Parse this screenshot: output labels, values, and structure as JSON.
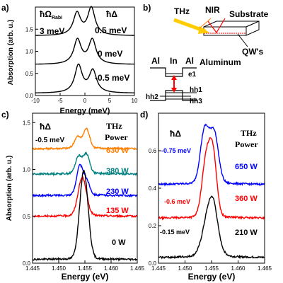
{
  "chart_data": [
    {
      "id": "a",
      "panel_label": "a)",
      "type": "line",
      "xlabel": "Energy (meV)",
      "ylabel": "Absorption (arb. u.)",
      "xlim": [
        -10,
        10
      ],
      "ylim": [
        0,
        2
      ],
      "xticks": [
        "-10",
        "-5",
        "0",
        "5",
        "10"
      ],
      "yticks": [
        "0.0",
        "0.5",
        "1.0",
        "1.5"
      ],
      "annotations": {
        "rabi_symbol": "ħΩ",
        "rabi_sub": "Rabi",
        "rabi_value": "3 meV",
        "delta_symbol": "ħΔ"
      },
      "series": [
        {
          "label": "0.5 meV",
          "offset": 1.35,
          "p1": {
            "x": -1.6,
            "y": 0.5
          },
          "p2": {
            "x": 1.3,
            "y": 0.62
          },
          "width": 0.9
        },
        {
          "label": "0 meV",
          "offset": 0.7,
          "p1": {
            "x": -1.5,
            "y": 0.55
          },
          "p2": {
            "x": 1.5,
            "y": 0.55
          },
          "width": 0.9
        },
        {
          "label": "-0.5 meV",
          "offset": 0.05,
          "p1": {
            "x": -1.3,
            "y": 0.62
          },
          "p2": {
            "x": 1.6,
            "y": 0.5
          },
          "width": 0.9
        }
      ]
    },
    {
      "id": "c",
      "panel_label": "c)",
      "type": "line",
      "xlabel": "Energy (eV)",
      "ylabel": "Absorption (arb. u.)",
      "xlim": [
        1.445,
        1.465
      ],
      "ylim": [
        0,
        1.6
      ],
      "xticks": [
        "1.445",
        "1.450",
        "1.455",
        "1.460",
        "1.465"
      ],
      "yticks": [
        "0.0",
        "0.5",
        "1.0",
        "1.5"
      ],
      "annotations": {
        "delta_symbol": "ħΔ",
        "delta_value": "-0.5 meV",
        "thz": "THz",
        "power": "Power"
      },
      "series": [
        {
          "label": "630 W",
          "color": "#ff8000",
          "offset": 1.22,
          "peaks": [
            {
              "x": 1.4536,
              "h": 0.12,
              "w": 0.0006
            },
            {
              "x": 1.4553,
              "h": 0.2,
              "w": 0.0006
            }
          ]
        },
        {
          "label": "380 W",
          "color": "#008080",
          "offset": 0.95,
          "peaks": [
            {
              "x": 1.4538,
              "h": 0.18,
              "w": 0.0006
            },
            {
              "x": 1.4553,
              "h": 0.2,
              "w": 0.0006
            }
          ]
        },
        {
          "label": "230 W",
          "color": "#0000ff",
          "offset": 0.72,
          "peaks": [
            {
              "x": 1.454,
              "h": 0.3,
              "w": 0.0006
            },
            {
              "x": 1.4553,
              "h": 0.15,
              "w": 0.0006
            }
          ]
        },
        {
          "label": "135 W",
          "color": "#ff0000",
          "offset": 0.5,
          "peaks": [
            {
              "x": 1.4545,
              "h": 0.4,
              "w": 0.0008
            }
          ]
        },
        {
          "label": "0 W",
          "color": "#000000",
          "offset": 0.04,
          "peaks": [
            {
              "x": 1.4548,
              "h": 0.93,
              "w": 0.0008
            }
          ]
        }
      ]
    },
    {
      "id": "d",
      "panel_label": "d)",
      "type": "line",
      "xlabel": "Energy (eV)",
      "ylabel": "",
      "xlim": [
        1.445,
        1.465
      ],
      "ylim": [
        0,
        0.8
      ],
      "xticks": [
        "1.445",
        "1.450",
        "1.455",
        "1.460",
        "1.465"
      ],
      "yticks": [
        "0.0",
        "0.2",
        "0.4",
        "0.6"
      ],
      "annotations": {
        "delta_symbol": "ħΔ",
        "thz": "THz",
        "power": "Power"
      },
      "series": [
        {
          "label": "650 W",
          "detuning": "-0.75 meV",
          "color": "#0000ff",
          "offset": 0.42,
          "peaks": [
            {
              "x": 1.4537,
              "h": 0.28,
              "w": 0.0008
            },
            {
              "x": 1.4555,
              "h": 0.26,
              "w": 0.0008
            }
          ]
        },
        {
          "label": "360 W",
          "detuning": "-0.6 meV",
          "color": "#ff0000",
          "offset": 0.24,
          "peaks": [
            {
              "x": 1.454,
              "h": 0.3,
              "w": 0.0008
            },
            {
              "x": 1.4553,
              "h": 0.3,
              "w": 0.0007
            }
          ]
        },
        {
          "label": "210 W",
          "detuning": "-0.15 meV",
          "color": "#000000",
          "offset": 0.03,
          "peaks": [
            {
              "x": 1.4548,
              "h": 0.28,
              "w": 0.0012
            },
            {
              "x": 1.4555,
              "h": 0.05,
              "w": 0.0006
            }
          ]
        }
      ]
    }
  ],
  "diagram": {
    "panel_label": "b)",
    "thz": "THz",
    "nir": "NIR",
    "substrate": "Substrate",
    "qws": "QW's",
    "aluminum": "Aluminum",
    "al_left": "Al",
    "in": "In",
    "al_right": "Al",
    "e1": "e1",
    "hh1": "hh1",
    "hh2": "hh2",
    "hh3": "hh3"
  }
}
